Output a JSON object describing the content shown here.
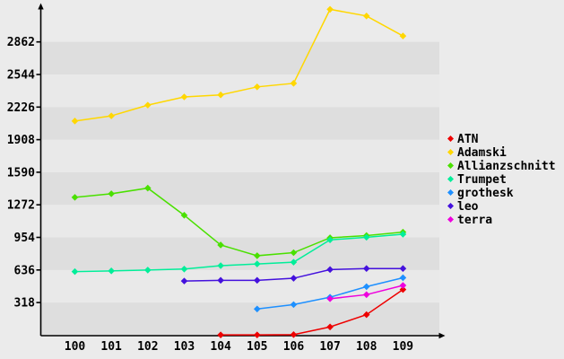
{
  "page": {
    "background": "#ebebeb",
    "band_dark": "#dedede",
    "band_light": "#e9e9e9",
    "axis_color": "#000000",
    "text_color": "#000000"
  },
  "chart_data": {
    "type": "line",
    "title": "",
    "xlabel": "",
    "ylabel": "",
    "xlim": [
      100,
      109
    ],
    "ylim": [
      0,
      3200
    ],
    "x_ticks": [
      100,
      101,
      102,
      103,
      104,
      105,
      106,
      107,
      108,
      109
    ],
    "y_ticks": [
      318,
      636,
      954,
      1272,
      1590,
      1908,
      2226,
      2544,
      2862
    ],
    "grid": "alternating-horizontal-bands",
    "legend_position": "right",
    "marker": "diamond",
    "series": [
      {
        "name": "ATN",
        "color": "#ee0000",
        "x": [
          104,
          105,
          106,
          107,
          108,
          109
        ],
        "values": [
          2,
          2,
          5,
          80,
          200,
          445
        ]
      },
      {
        "name": "Adamski",
        "color": "#ffd700",
        "x": [
          100,
          101,
          102,
          103,
          104,
          105,
          106,
          107,
          108,
          109
        ],
        "values": [
          2090,
          2140,
          2245,
          2325,
          2345,
          2423,
          2458,
          3180,
          3115,
          2920
        ]
      },
      {
        "name": "Allianzschnitt",
        "color": "#4ae000",
        "x": [
          100,
          101,
          102,
          103,
          104,
          105,
          106,
          107,
          108,
          109
        ],
        "values": [
          1345,
          1380,
          1435,
          1170,
          880,
          775,
          805,
          950,
          972,
          1005
        ]
      },
      {
        "name": "Trumpet",
        "color": "#00ee99",
        "x": [
          100,
          101,
          102,
          103,
          104,
          105,
          106,
          107,
          108,
          109
        ],
        "values": [
          620,
          627,
          635,
          645,
          678,
          695,
          712,
          930,
          955,
          985
        ]
      },
      {
        "name": "grothesk",
        "color": "#1e90ff",
        "x": [
          105,
          106,
          107,
          108,
          109
        ],
        "values": [
          255,
          298,
          370,
          473,
          560
        ]
      },
      {
        "name": "leo",
        "color": "#4411dd",
        "x": [
          103,
          104,
          105,
          106,
          107,
          108,
          109
        ],
        "values": [
          528,
          535,
          535,
          555,
          640,
          650,
          650
        ]
      },
      {
        "name": "terra",
        "color": "#ee00dd",
        "x": [
          107,
          108,
          109
        ],
        "values": [
          355,
          395,
          485
        ]
      }
    ]
  }
}
